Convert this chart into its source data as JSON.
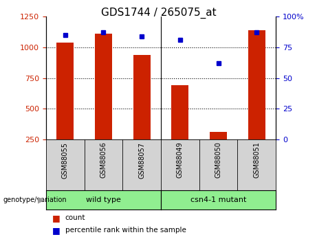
{
  "title": "GDS1744 / 265075_at",
  "categories": [
    "GSM88055",
    "GSM88056",
    "GSM88057",
    "GSM88049",
    "GSM88050",
    "GSM88051"
  ],
  "bar_values": [
    1040,
    1110,
    940,
    690,
    310,
    1140
  ],
  "percentile_values": [
    85,
    87,
    84,
    81,
    62,
    87
  ],
  "bar_color": "#cc2200",
  "dot_color": "#0000cc",
  "ylim_left": [
    250,
    1250
  ],
  "ylim_right": [
    0,
    100
  ],
  "yticks_left": [
    250,
    500,
    750,
    1000,
    1250
  ],
  "yticks_right": [
    0,
    25,
    50,
    75,
    100
  ],
  "ytick_labels_right": [
    "0",
    "25",
    "50",
    "75",
    "100%"
  ],
  "grid_values": [
    1000,
    750,
    500
  ],
  "bar_width": 0.45,
  "background_color": "#ffffff",
  "plot_bg_color": "#ffffff",
  "legend_count_label": "count",
  "legend_pct_label": "percentile rank within the sample",
  "genotype_label": "genotype/variation",
  "wild_type_label": "wild type",
  "mutant_label": "csn4-1 mutant",
  "left_yaxis_color": "#cc2200",
  "right_yaxis_color": "#0000cc",
  "xticklabel_bg": "#d3d3d3",
  "group_bg": "#90ee90",
  "n_wt": 3,
  "n_mut": 3
}
